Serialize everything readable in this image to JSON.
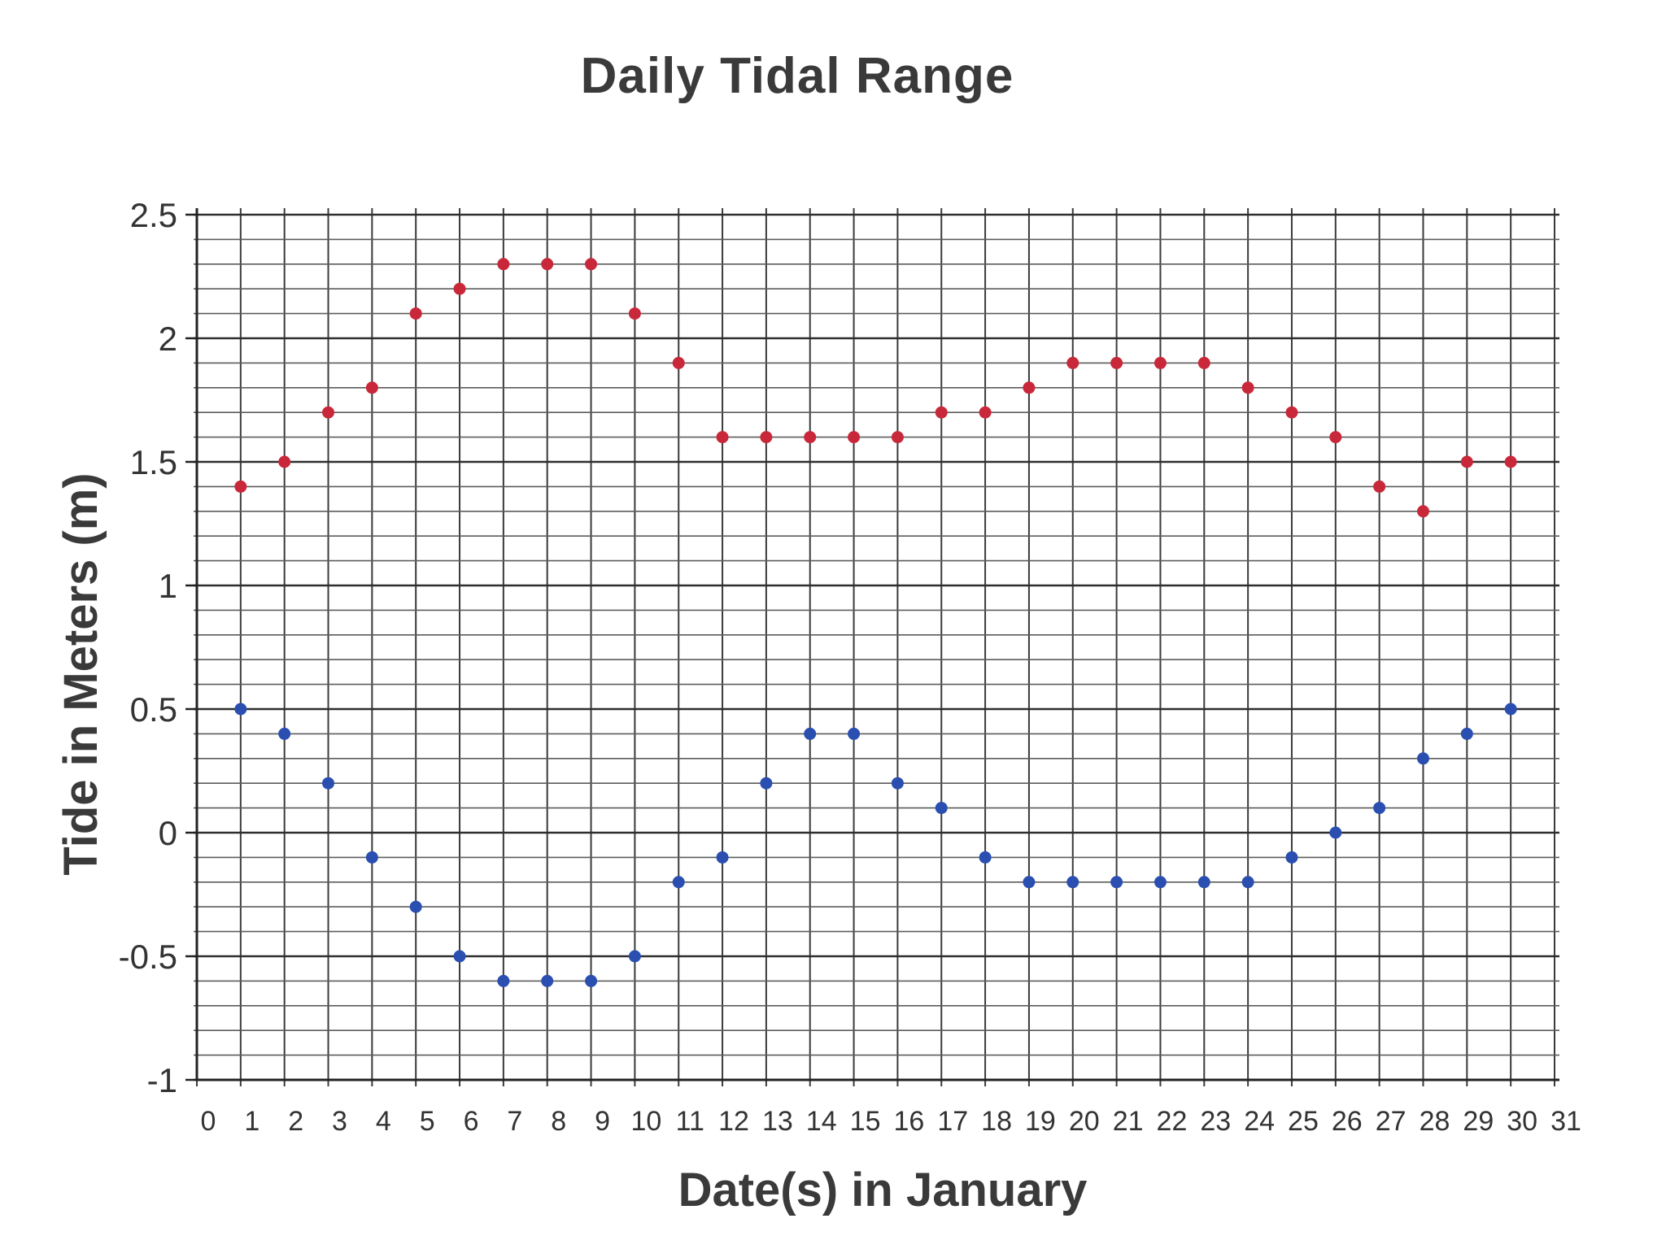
{
  "chart_data": {
    "type": "scatter",
    "title": "Daily Tidal Range",
    "xlabel": "Date(s) in January",
    "ylabel": "Tide in Meters (m)",
    "xlim": [
      0,
      31
    ],
    "ylim": [
      -1,
      2.5
    ],
    "x_ticks": [
      "0",
      "1",
      "2",
      "3",
      "4",
      "5",
      "6",
      "7",
      "8",
      "9",
      "10",
      "11",
      "12",
      "13",
      "14",
      "15",
      "16",
      "17",
      "18",
      "19",
      "20",
      "21",
      "22",
      "23",
      "24",
      "25",
      "26",
      "27",
      "28",
      "29",
      "30",
      "31"
    ],
    "y_ticks": [
      "2.5",
      "2",
      "1.5",
      "1",
      "0.5",
      "0",
      "-0.5",
      "-1"
    ],
    "grid": true,
    "series": [
      {
        "color": "#c8283a",
        "x": [
          1,
          2,
          3,
          4,
          5,
          6,
          7,
          8,
          9,
          10,
          11,
          12,
          13,
          14,
          15,
          16,
          17,
          18,
          19,
          20,
          21,
          22,
          23,
          24,
          25,
          26,
          27,
          28,
          29,
          30
        ],
        "values": [
          1.4,
          1.5,
          1.7,
          1.8,
          2.1,
          2.2,
          2.3,
          2.3,
          2.3,
          2.1,
          1.9,
          1.6,
          1.6,
          1.6,
          1.6,
          1.6,
          1.7,
          1.7,
          1.8,
          1.9,
          1.9,
          1.9,
          1.9,
          1.8,
          1.7,
          1.6,
          1.4,
          1.3,
          1.5,
          1.5
        ]
      },
      {
        "color": "#2a4fb0",
        "x": [
          1,
          2,
          3,
          4,
          5,
          6,
          7,
          8,
          9,
          10,
          11,
          12,
          13,
          14,
          15,
          16,
          17,
          18,
          19,
          20,
          21,
          22,
          23,
          24,
          25,
          26,
          27,
          28,
          29,
          30
        ],
        "values": [
          0.5,
          0.4,
          0.2,
          -0.1,
          -0.3,
          -0.5,
          -0.6,
          -0.6,
          -0.6,
          -0.5,
          -0.2,
          -0.1,
          0.2,
          0.4,
          0.4,
          0.2,
          0.1,
          -0.1,
          -0.2,
          -0.2,
          -0.2,
          -0.2,
          -0.2,
          -0.2,
          -0.1,
          0.0,
          0.1,
          0.3,
          0.4,
          0.5
        ]
      }
    ]
  }
}
